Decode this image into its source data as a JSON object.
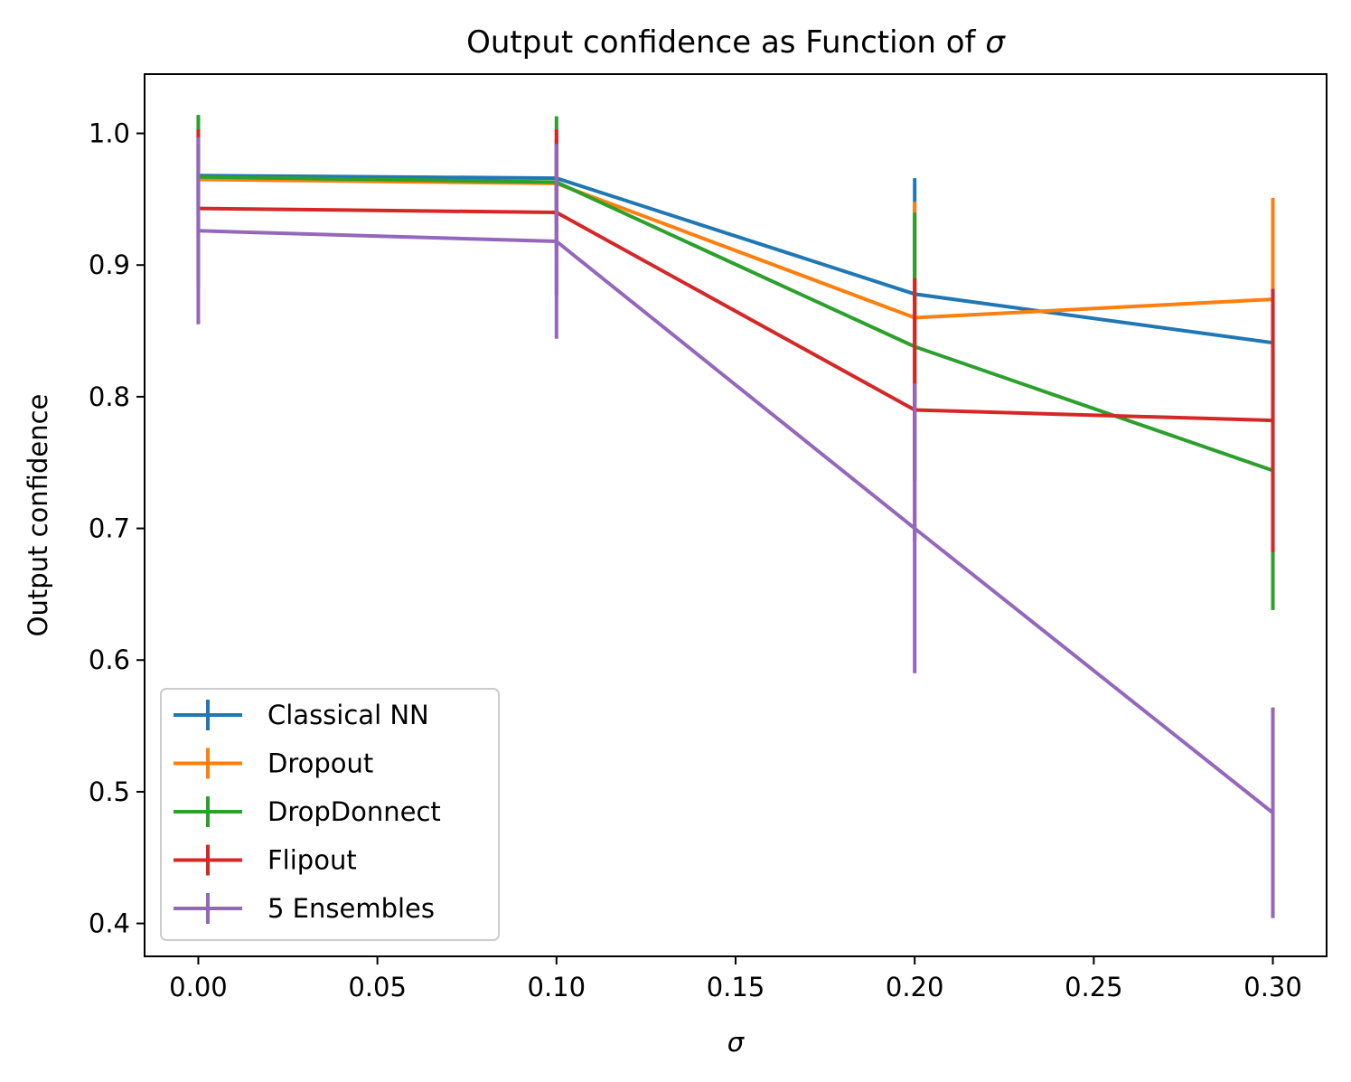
{
  "chart_data": {
    "type": "line",
    "title": "Output confidence as Function of σ",
    "title_prefix": "Output confidence as Function of ",
    "title_symbol": "σ",
    "xlabel": "σ",
    "ylabel": "Output confidence",
    "xlim": [
      -0.015,
      0.315
    ],
    "ylim": [
      0.375,
      1.045
    ],
    "xticks": [
      0.0,
      0.05,
      0.1,
      0.15,
      0.2,
      0.25,
      0.3
    ],
    "xtick_labels": [
      "0.00",
      "0.05",
      "0.10",
      "0.15",
      "0.20",
      "0.25",
      "0.30"
    ],
    "yticks": [
      0.4,
      0.5,
      0.6,
      0.7,
      0.8,
      0.9,
      1.0
    ],
    "ytick_labels": [
      "0.4",
      "0.5",
      "0.6",
      "0.7",
      "0.8",
      "0.9",
      "1.0"
    ],
    "legend_position": "lower-left",
    "x": [
      0.0,
      0.1,
      0.2,
      0.3
    ],
    "series": [
      {
        "name": "Classical NN",
        "color": "#1f77b4",
        "values": [
          0.968,
          0.966,
          0.878,
          0.841
        ],
        "errors": [
          0.03,
          0.03,
          0.088,
          0.04
        ]
      },
      {
        "name": "Dropout",
        "color": "#ff7f0e",
        "values": [
          0.965,
          0.962,
          0.86,
          0.874
        ],
        "errors": [
          0.03,
          0.03,
          0.088,
          0.077
        ]
      },
      {
        "name": "DropDonnect",
        "color": "#2ca02c",
        "values": [
          0.967,
          0.963,
          0.838,
          0.744
        ],
        "errors": [
          0.047,
          0.05,
          0.102,
          0.106
        ]
      },
      {
        "name": "Flipout",
        "color": "#d62728",
        "values": [
          0.943,
          0.94,
          0.79,
          0.782
        ],
        "errors": [
          0.06,
          0.063,
          0.1,
          0.1
        ]
      },
      {
        "name": "5 Ensembles",
        "color": "#9467bd",
        "values": [
          0.926,
          0.918,
          0.7,
          0.484
        ],
        "errors": [
          0.071,
          0.074,
          0.11,
          0.08
        ]
      }
    ]
  }
}
